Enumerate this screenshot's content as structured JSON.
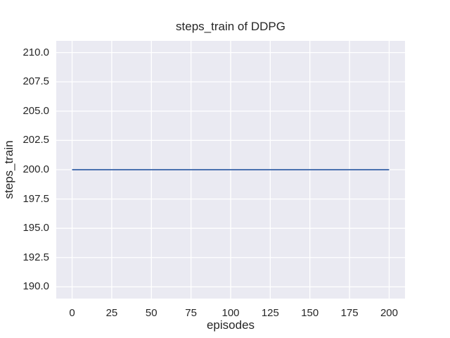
{
  "figure": {
    "background": "#FFFFFF"
  },
  "chart_data": {
    "type": "line",
    "title": "steps_train of DDPG",
    "xlabel": "episodes",
    "ylabel": "steps_train",
    "x_ticks": [
      0,
      25,
      50,
      75,
      100,
      125,
      150,
      175,
      200
    ],
    "y_ticks": [
      190.0,
      192.5,
      195.0,
      197.5,
      200.0,
      202.5,
      205.0,
      207.5,
      210.0
    ],
    "y_tick_decimals": 1,
    "xlim": [
      -10,
      210
    ],
    "ylim": [
      189,
      211
    ],
    "grid": true,
    "legend_position": "none",
    "plot_background": "#EAEAF2",
    "grid_color": "#FFFFFF",
    "text_color": "#262626",
    "series": [
      {
        "name": "steps_train",
        "color": "#4C72B0",
        "x": [
          0,
          200
        ],
        "y": [
          200,
          200
        ]
      }
    ]
  }
}
